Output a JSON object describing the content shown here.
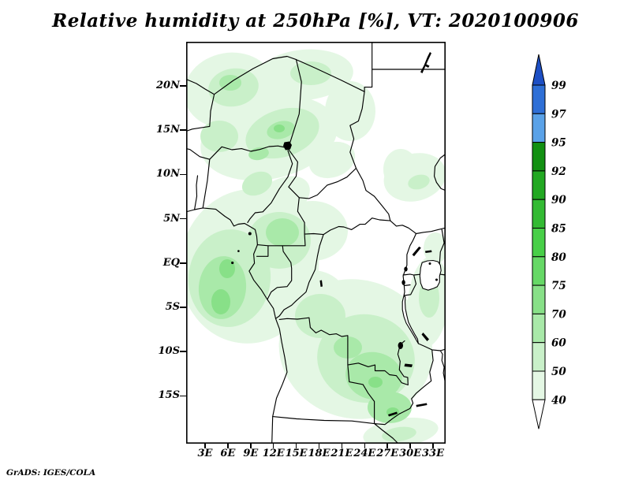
{
  "title": "Relative humidity at 250hPa [%], VT: 2020100906",
  "credit": "GrADS: IGES/COLA",
  "axes": {
    "lat_ticks": [
      "20N",
      "15N",
      "10N",
      "5N",
      "EQ",
      "5S",
      "10S",
      "15S"
    ],
    "lon_ticks": [
      "3E",
      "6E",
      "9E",
      "12E",
      "15E",
      "18E",
      "21E",
      "24E",
      "27E",
      "30E",
      "33E"
    ]
  },
  "colorbar": {
    "labels": [
      "99",
      "97",
      "95",
      "92",
      "90",
      "85",
      "80",
      "75",
      "70",
      "60",
      "50",
      "40"
    ],
    "segment_colors_top_to_bottom": [
      "#1d4fc4",
      "#2e6fd6",
      "#5aa2e8",
      "#129012",
      "#22a822",
      "#33ba33",
      "#48cf48",
      "#66d866",
      "#88e088",
      "#a9e9a9",
      "#c9f0c9",
      "#e4f7e4",
      "#ffffff"
    ]
  },
  "chart_data": {
    "type": "heatmap",
    "title": "Relative humidity at 250hPa [%], VT: 2020100906",
    "variable": "Relative humidity",
    "pressure_level": "250hPa",
    "units": "%",
    "valid_time": "2020100906",
    "renderer": "GrADS: IGES/COLA",
    "map_region": "Central Africa",
    "lon_range_deg_east": [
      0.5,
      34.7
    ],
    "lat_range_deg_north": [
      -20.4,
      25.3
    ],
    "lon_ticks": [
      "3E",
      "6E",
      "9E",
      "12E",
      "15E",
      "18E",
      "21E",
      "24E",
      "27E",
      "30E",
      "33E"
    ],
    "lat_ticks": [
      "20N",
      "15N",
      "10N",
      "5N",
      "EQ",
      "5S",
      "10S",
      "15S"
    ],
    "colorbar_levels_percent": [
      40,
      50,
      60,
      70,
      75,
      80,
      85,
      90,
      92,
      95,
      97,
      99
    ],
    "colorbar_colors": [
      "#1d4fc4",
      "#2e6fd6",
      "#5aa2e8",
      "#129012",
      "#22a822",
      "#33ba33",
      "#48cf48",
      "#66d866",
      "#88e088",
      "#a9e9a9",
      "#c9f0c9",
      "#e4f7e4",
      "#ffffff"
    ],
    "legend_note": "values below 40% unshaded (white); arrows cap the scale above 99% (blue) and below 40% (white)",
    "shaded_features": [
      {
        "area": "Sahel band over Niger / northern Nigeria / western Chad (10N-22N)",
        "humidity_pct": "40-70"
      },
      {
        "area": "Gulf of Guinea coast: Cameroon, Gabon, Congo and adjacent ocean (6N-6S)",
        "humidity_pct": "40-75"
      },
      {
        "area": "Southern DR Congo into NE Angola and N Zambia (4S-14S)",
        "humidity_pct": "40-75"
      },
      {
        "area": "South Sudan / Sudan-Ethiopia border patches",
        "humidity_pct": "40-55"
      },
      {
        "area": "Eastern edge near Tanzania (30E-35E)",
        "humidity_pct": "40-60"
      },
      {
        "area": "Small patches near bottom-right (Zambia/Malawi)",
        "humidity_pct": "40-55"
      },
      {
        "area": "NE Sudan / Egypt border region",
        "humidity_pct": "below 40 (white)"
      },
      {
        "area": "SW Angola coast and far south",
        "humidity_pct": "below 40 (white)"
      }
    ]
  }
}
